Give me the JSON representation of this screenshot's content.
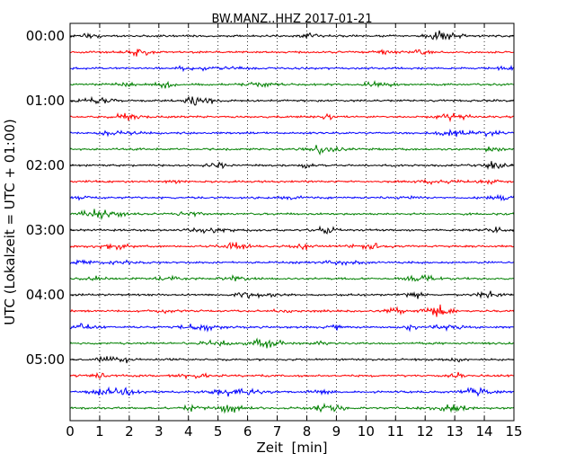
{
  "chart_data": {
    "type": "line",
    "title": "BW.MANZ..HHZ 2017-01-21",
    "xlabel": "Zeit  [min]",
    "ylabel": "UTC (Lokalzeit = UTC + 01:00)",
    "xlim": [
      0,
      15
    ],
    "x_ticks": [
      "0",
      "1",
      "2",
      "3",
      "4",
      "5",
      "6",
      "7",
      "8",
      "9",
      "10",
      "11",
      "12",
      "13",
      "14",
      "15"
    ],
    "y_tick_labels": [
      "00:00",
      "01:00",
      "02:00",
      "03:00",
      "04:00",
      "05:00"
    ],
    "y_tick_every_n_traces": 4,
    "trace_minutes": 15,
    "trace_count": 24,
    "trace_colors": [
      "#000000",
      "#ff0000",
      "#0000ff",
      "#008000"
    ],
    "grid": {
      "x": true,
      "style": "dotted"
    }
  }
}
